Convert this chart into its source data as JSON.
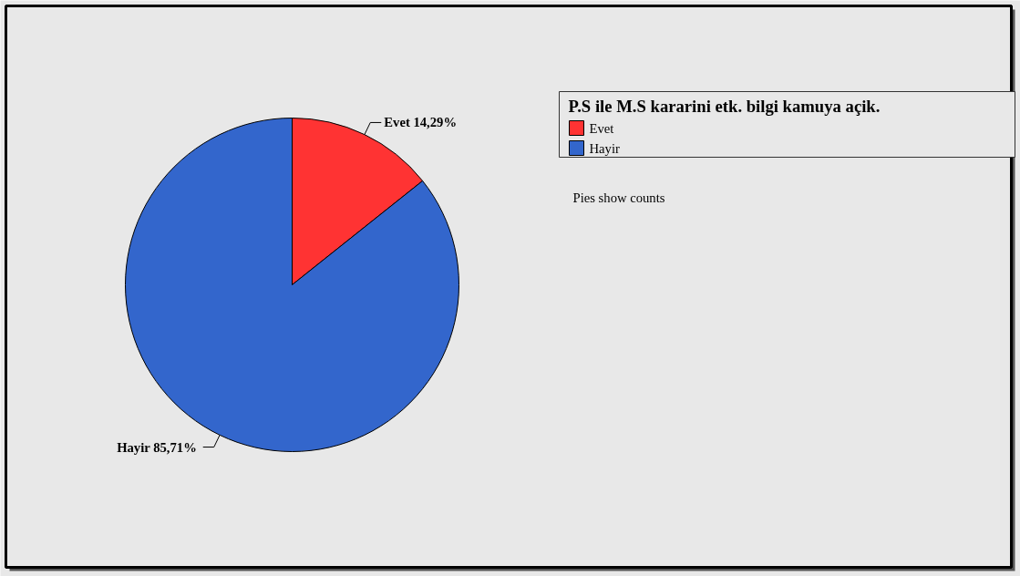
{
  "chart_data": {
    "type": "pie",
    "legend_title": "P.S ile M.S kararini  etk. bilgi kamuya açik.",
    "categories": [
      "Evet",
      "Hayir"
    ],
    "values": [
      14.29,
      85.71
    ],
    "colors": [
      "#ff3333",
      "#3366cc"
    ],
    "value_labels": [
      "14,29%",
      "85,71%"
    ],
    "legend": "top right",
    "annotations": [
      "Pies show counts"
    ]
  }
}
